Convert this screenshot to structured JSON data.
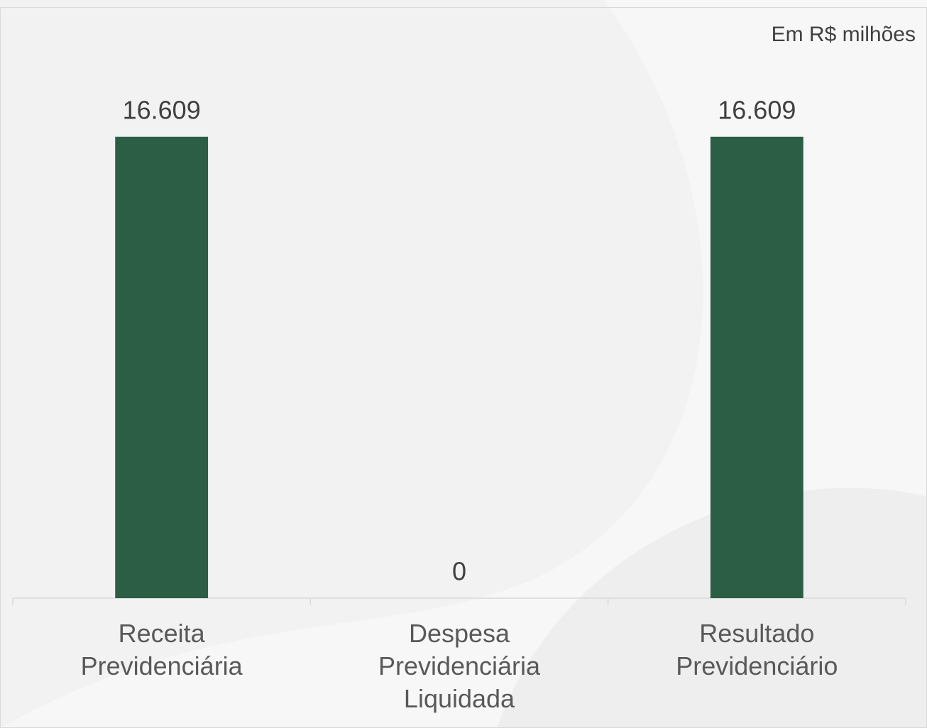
{
  "chart_data": {
    "type": "bar",
    "annotation": "Em R$ milhões",
    "categories": [
      "Receita Previdenciária",
      "Despesa Previdenciária Liquidada",
      "Resultado Previdenciário"
    ],
    "values": [
      16609,
      0,
      16609
    ],
    "value_labels": [
      "16.609",
      "0",
      "16.609"
    ],
    "color": "#2b5e45",
    "ylim": [
      0,
      20000
    ]
  }
}
